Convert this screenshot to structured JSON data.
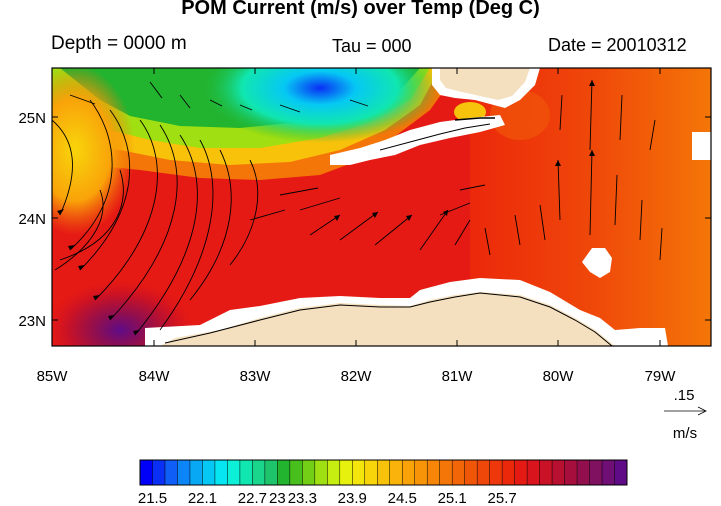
{
  "figure": {
    "title": "POM Current (m/s) over Temp (Deg C)",
    "depth_label": "Depth = 0000 m",
    "tau_label": "Tau = 000",
    "date_label": "Date = 20010312"
  },
  "map": {
    "lon_range": [
      -85,
      -78.5
    ],
    "lat_range": [
      22.75,
      25.5
    ],
    "x_ticks": [
      "85W",
      "84W",
      "83W",
      "82W",
      "81W",
      "80W",
      "79W"
    ],
    "y_ticks": [
      "23N",
      "24N",
      "25N"
    ],
    "colors": {
      "land": "#f4dfbe",
      "mask": "#ffffff",
      "vector": "#000000"
    }
  },
  "reference_vector": {
    "value": ".15",
    "units": "m/s"
  },
  "colorbar": {
    "labels": [
      "21.5",
      "22.1",
      "22.7",
      "23",
      "23.3",
      "23.9",
      "24.5",
      "25.1",
      "25.7"
    ],
    "colors": [
      "#0000f8",
      "#0a2ff5",
      "#0f5ef7",
      "#0c85f8",
      "#09a8f5",
      "#06c8f4",
      "#05e5f2",
      "#0cf0d8",
      "#10e6b0",
      "#1ad68c",
      "#1ec46c",
      "#22b42f",
      "#48bf1c",
      "#73cf16",
      "#a0df12",
      "#c6ee10",
      "#e6f20e",
      "#f4e60c",
      "#f8d50b",
      "#f9c20a",
      "#fab30a",
      "#f9a309",
      "#f89408",
      "#f68508",
      "#f47608",
      "#f26608",
      "#f05608",
      "#ef4709",
      "#ee370a",
      "#ec280b",
      "#e61a14",
      "#d9141c",
      "#c91226",
      "#b81031",
      "#a60e3e",
      "#920f4d",
      "#801060",
      "#6f0e74",
      "#5f0b87"
    ]
  }
}
